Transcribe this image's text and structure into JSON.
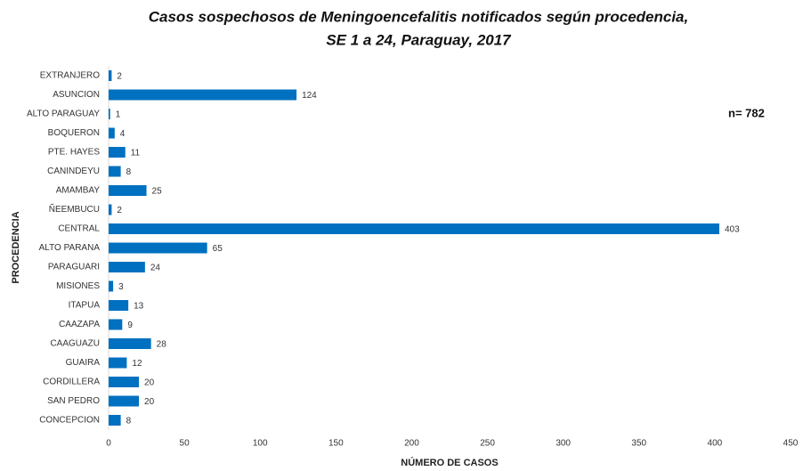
{
  "chart_data": {
    "type": "bar",
    "orientation": "horizontal",
    "title": [
      "Casos sospechosos de Meningoencefalitis notificados según procedencia,",
      "SE 1 a 24, Paraguay, 2017"
    ],
    "annotation": "n= 782",
    "xlabel": "NÚMERO DE CASOS",
    "ylabel": "PROCEDENCIA",
    "categories": [
      "EXTRANJERO",
      "ASUNCION",
      "ALTO PARAGUAY",
      "BOQUERON",
      "PTE. HAYES",
      "CANINDEYU",
      "AMAMBAY",
      "ÑEEMBUCU",
      "CENTRAL",
      "ALTO PARANA",
      "PARAGUARI",
      "MISIONES",
      "ITAPUA",
      "CAAZAPA",
      "CAAGUAZU",
      "GUAIRA",
      "CORDILLERA",
      "SAN PEDRO",
      "CONCEPCION"
    ],
    "values": [
      2,
      124,
      1,
      4,
      11,
      8,
      25,
      2,
      403,
      65,
      24,
      3,
      13,
      9,
      28,
      12,
      20,
      20,
      8
    ],
    "color": "#0070c0",
    "xlim": [
      0,
      450
    ],
    "xticks": [
      0,
      50,
      100,
      150,
      200,
      250,
      300,
      350,
      400,
      450
    ],
    "grid": false
  }
}
